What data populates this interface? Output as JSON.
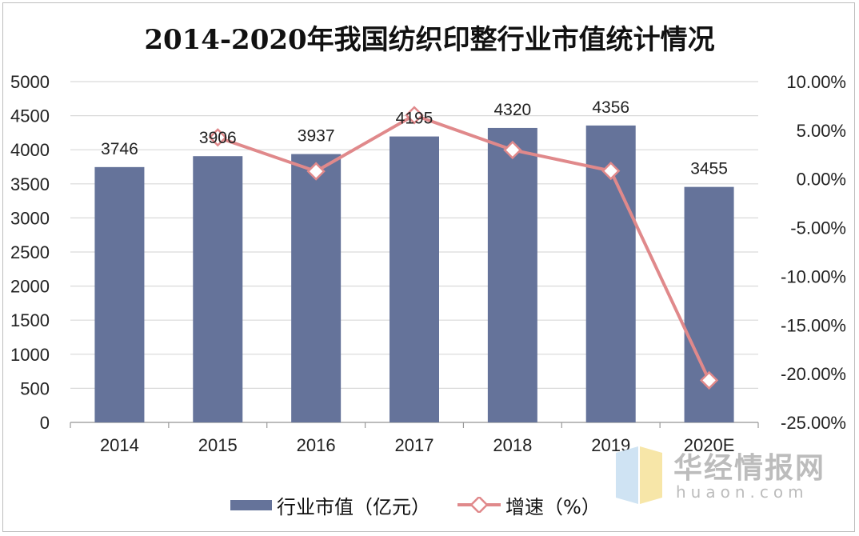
{
  "colors": {
    "bar": "#65739a",
    "line": "#e0898b",
    "marker_fill": "#ffffff",
    "grid": "#d9d9d9"
  },
  "chart_data": {
    "type": "bar",
    "title": "2014-2020年我国纺织印整行业市值统计情况",
    "categories": [
      "2014",
      "2015",
      "2016",
      "2017",
      "2018",
      "2019",
      "2020E"
    ],
    "series": [
      {
        "name": "行业市值（亿元）",
        "type": "bar",
        "axis": "left",
        "values": [
          3746,
          3906,
          3937,
          4195,
          4320,
          4356,
          3455
        ]
      },
      {
        "name": "增速（%）",
        "type": "line",
        "axis": "right",
        "values": [
          null,
          4.27,
          0.79,
          6.55,
          2.98,
          0.83,
          -20.68
        ]
      }
    ],
    "data_labels": [
      "3746",
      "3906",
      "3937",
      "4195",
      "4320",
      "4356",
      "3455"
    ],
    "y_left": {
      "ylim": [
        0,
        5000
      ],
      "ticks": [
        "0",
        "500",
        "1000",
        "1500",
        "2000",
        "2500",
        "3000",
        "3500",
        "4000",
        "4500",
        "5000"
      ]
    },
    "y_right": {
      "ylim": [
        -25,
        10
      ],
      "ticks": [
        "-25.00%",
        "-20.00%",
        "-15.00%",
        "-10.00%",
        "-5.00%",
        "0.00%",
        "5.00%",
        "10.00%"
      ]
    },
    "grid": true,
    "legend_position": "bottom"
  },
  "watermark": {
    "name": "华经情报网",
    "url": "huaon.com"
  }
}
